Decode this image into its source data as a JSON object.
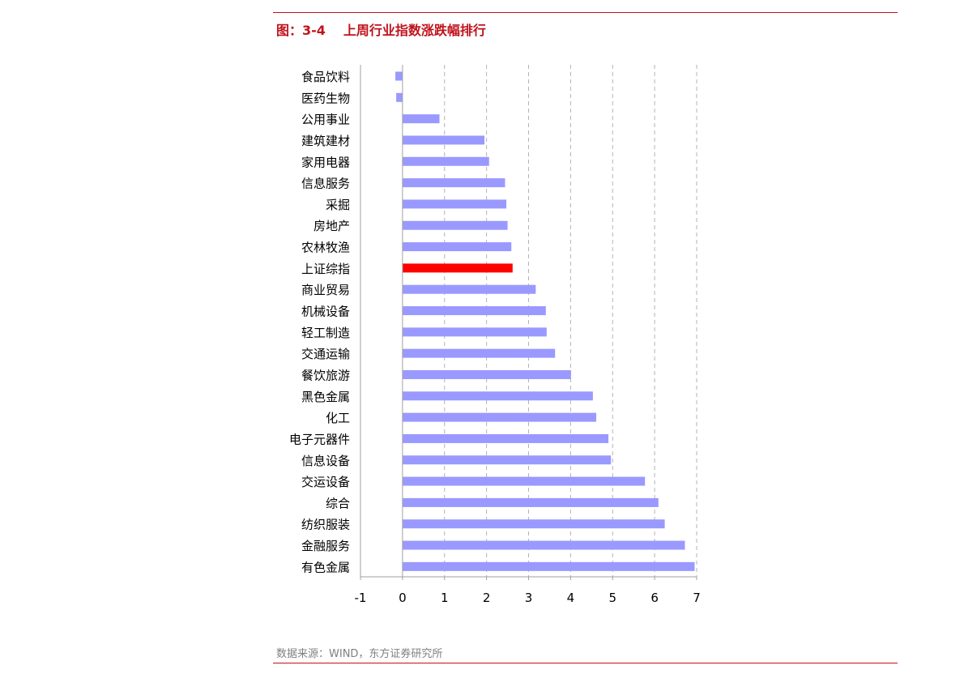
{
  "header": {
    "figure_label": "图：3-4",
    "title": "上周行业指数涨跌幅排行"
  },
  "footer": {
    "source": "数据来源：WIND，东方证券研究所"
  },
  "colors": {
    "accent": "#c0121c",
    "bar": "#9999ff",
    "highlight_bar": "#ff0000"
  },
  "chart_data": {
    "type": "bar",
    "orientation": "horizontal",
    "title": "",
    "xlabel": "",
    "ylabel": "",
    "xlim": [
      -1,
      7
    ],
    "x_ticks": [
      -1,
      0,
      1,
      2,
      3,
      4,
      5,
      6,
      7
    ],
    "grid": "vertical dashed",
    "legend": "none",
    "highlight": "上证综指",
    "categories": [
      "食品饮料",
      "医药生物",
      "公用事业",
      "建筑建材",
      "家用电器",
      "信息服务",
      "采掘",
      "房地产",
      "农林牧渔",
      "上证综指",
      "商业贸易",
      "机械设备",
      "轻工制造",
      "交通运输",
      "餐饮旅游",
      "黑色金属",
      "化工",
      "电子元器件",
      "信息设备",
      "交运设备",
      "综合",
      "纺织服装",
      "金融服务",
      "有色金属"
    ],
    "values": [
      -0.17,
      -0.15,
      0.88,
      1.95,
      2.06,
      2.44,
      2.47,
      2.5,
      2.59,
      2.62,
      3.17,
      3.41,
      3.43,
      3.63,
      4.01,
      4.53,
      4.61,
      4.9,
      4.96,
      5.77,
      6.09,
      6.24,
      6.72,
      6.95
    ]
  }
}
